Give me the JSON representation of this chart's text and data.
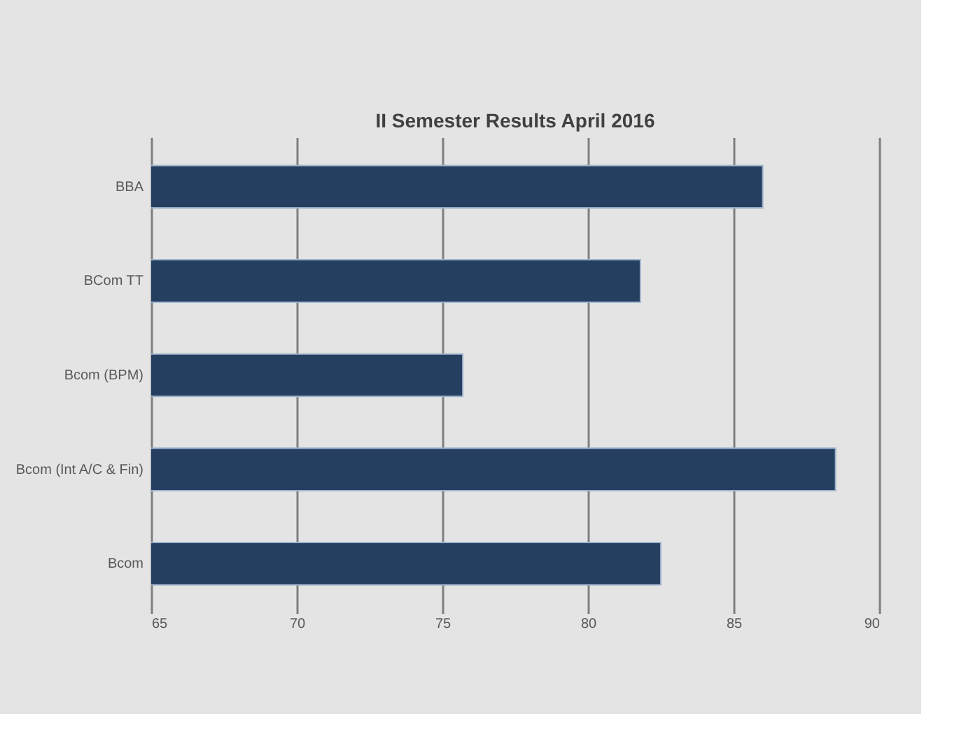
{
  "chart_data": {
    "type": "bar",
    "orientation": "horizontal",
    "title": "II Semester Results April 2016",
    "categories": [
      "BBA",
      "BCom TT",
      "Bcom (BPM)",
      "Bcom (Int A/C & Fin)",
      "Bcom"
    ],
    "values": [
      86.0,
      81.8,
      75.7,
      88.5,
      82.5
    ],
    "color": "#243f60",
    "xlim": [
      65,
      90
    ],
    "xticks": [
      65,
      70,
      75,
      80,
      85,
      90
    ],
    "grid": "x"
  }
}
